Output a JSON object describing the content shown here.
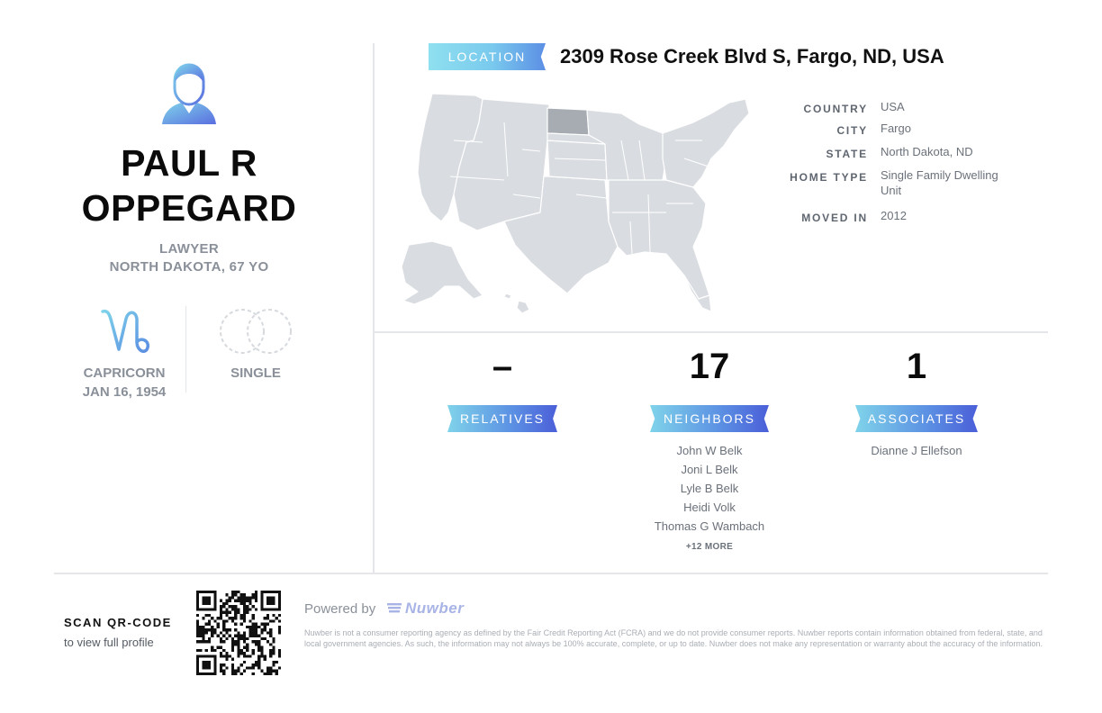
{
  "person": {
    "name_line1": "PAUL R",
    "name_line2": "OPPEGARD",
    "occupation": "LAWYER",
    "region_age": "NORTH DAKOTA, 67 YO",
    "zodiac_sign": "CAPRICORN",
    "birth_date": "JAN 16, 1954",
    "marital_status": "SINGLE"
  },
  "location": {
    "label": "LOCATION",
    "address": "2309 Rose Creek Blvd S, Fargo, ND, USA",
    "highlighted_state": "North Dakota",
    "details": [
      {
        "label": "COUNTRY",
        "value": "USA"
      },
      {
        "label": "CITY",
        "value": "Fargo"
      },
      {
        "label": "STATE",
        "value": "North Dakota, ND"
      },
      {
        "label": "HOME TYPE",
        "value": "Single Family Dwelling Unit"
      },
      {
        "label": "MOVED IN",
        "value": "2012"
      }
    ]
  },
  "stats": {
    "relatives": {
      "count": "–",
      "label": "RELATIVES",
      "names": []
    },
    "neighbors": {
      "count": "17",
      "label": "NEIGHBORS",
      "names": [
        "John W Belk",
        "Joni L Belk",
        "Lyle B Belk",
        "Heidi Volk",
        "Thomas G Wambach"
      ],
      "more": "+12 MORE"
    },
    "associates": {
      "count": "1",
      "label": "ASSOCIATES",
      "names": [
        "Dianne J Ellefson"
      ]
    }
  },
  "footer": {
    "scan_title": "SCAN QR-CODE",
    "scan_subtitle": "to view full profile",
    "powered_by": "Powered by",
    "brand": "Nuwber",
    "disclaimer": "Nuwber is not a consumer reporting agency as defined by the Fair Credit Reporting Act (FCRA) and we do not provide consumer reports. Nuwber reports contain information obtained from federal, state, and local government agencies. As such, the information may not always be 100% accurate, complete, or up to date. Nuwber does not make any representation or warranty about the accuracy of the information."
  },
  "colors": {
    "ribbon_start": "#7fd3ea",
    "ribbon_end": "#4b5fd8",
    "map_fill": "#d9dce0",
    "map_highlight": "#a7acb3",
    "muted_text": "#8a9099"
  },
  "icons": [
    "user-avatar-icon",
    "capricorn-icon",
    "rings-icon",
    "qr-code",
    "nuwber-logo-icon"
  ]
}
